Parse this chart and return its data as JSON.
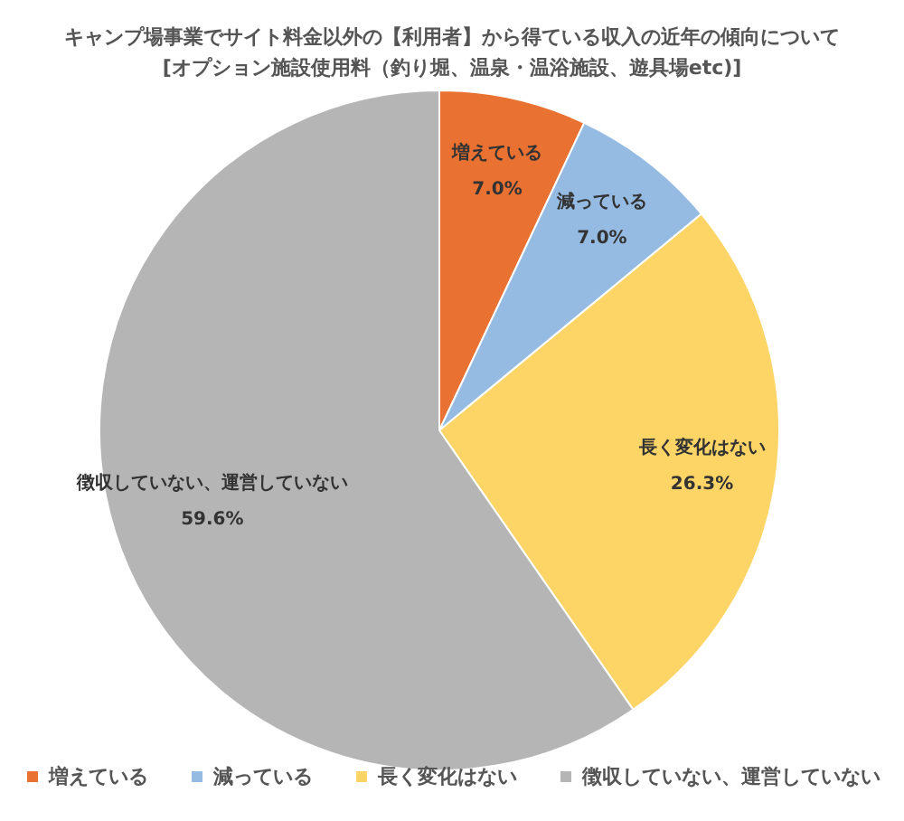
{
  "chart_data": {
    "type": "pie",
    "title": "キャンプ場事業でサイト料金以外の【利用者】から得ている収入の近年の傾向について",
    "subtitle": "[オプション施設使用料（釣り堀、温泉・温浴施設、遊具場etc)]",
    "categories": [
      "増えている",
      "減っている",
      "長く変化はない",
      "徴収していない、運営していない"
    ],
    "values": [
      7.0,
      7.0,
      26.3,
      59.6
    ],
    "value_labels": [
      "7.0%",
      "7.0%",
      "26.3%",
      "59.6%"
    ],
    "colors": [
      "#e97132",
      "#95bbe3",
      "#fdd466",
      "#b5b5b5"
    ],
    "legend": "bottom"
  }
}
